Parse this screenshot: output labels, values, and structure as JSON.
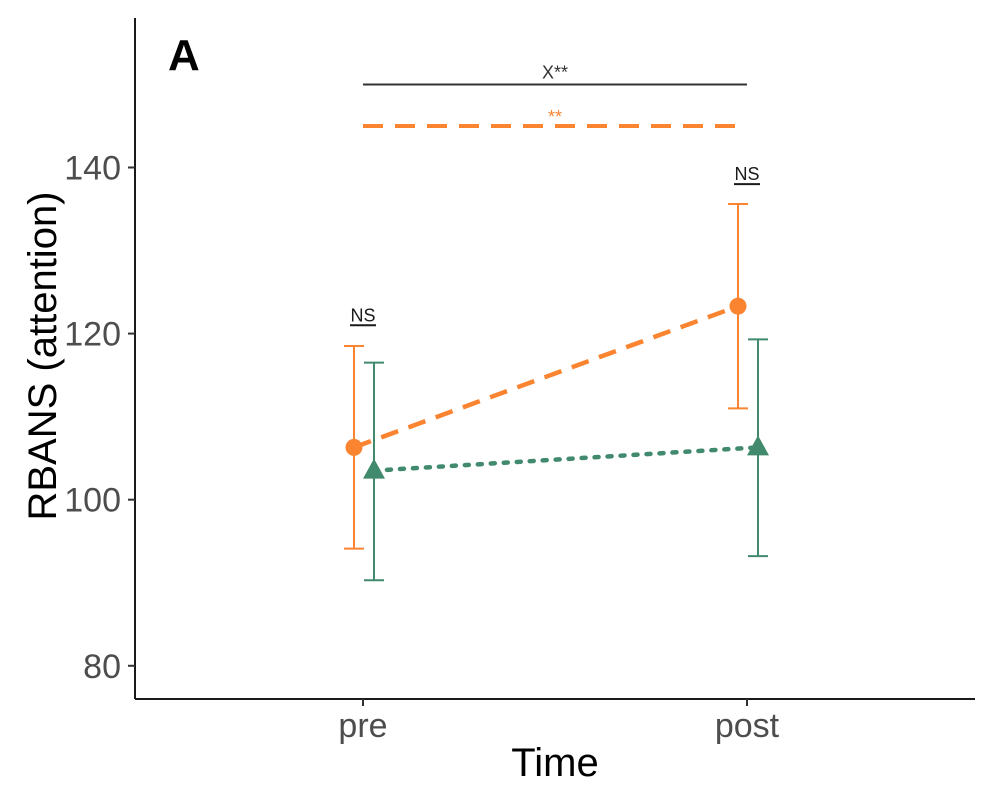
{
  "chart_data": {
    "type": "line",
    "panel_label": "A",
    "title": "",
    "xlabel": "Time",
    "ylabel": "RBANS (attention)",
    "categories": [
      "pre",
      "post"
    ],
    "ylim": [
      76,
      158
    ],
    "yticks": [
      80,
      100,
      120,
      140
    ],
    "grid": false,
    "legend": "none",
    "series": [
      {
        "key": "orange",
        "values": [
          106.3,
          123.3
        ],
        "err_low": [
          94.1,
          111.0
        ],
        "err_high": [
          118.5,
          135.6
        ],
        "marker": "circle",
        "line_style": "dashed",
        "color": "#FA8430"
      },
      {
        "key": "green",
        "values": [
          103.5,
          106.3
        ],
        "err_low": [
          90.3,
          93.2
        ],
        "err_high": [
          116.5,
          119.3
        ],
        "marker": "triangle",
        "line_style": "dotted",
        "color": "#418A6E"
      }
    ],
    "annotations": {
      "interaction": {
        "text": "X**",
        "y": 150,
        "color": "#333333"
      },
      "within_group": {
        "text": "**",
        "y": 145,
        "color": "#FA8430"
      },
      "between_groups": [
        {
          "text": "NS",
          "category": "pre",
          "y": 121
        },
        {
          "text": "NS",
          "category": "post",
          "y": 138
        }
      ]
    }
  }
}
